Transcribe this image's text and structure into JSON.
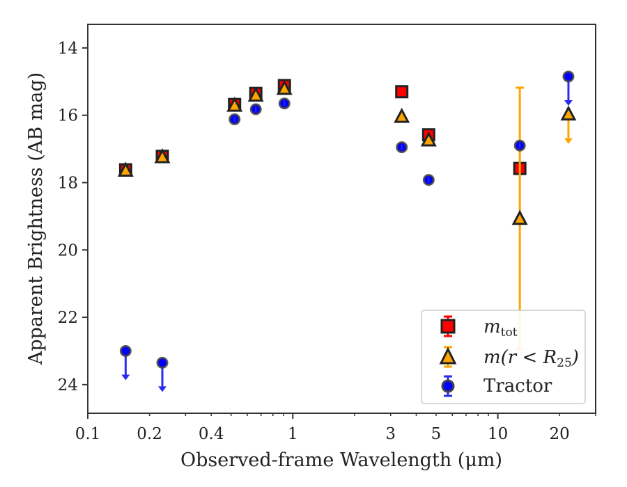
{
  "chart_data": {
    "type": "scatter",
    "xlabel": "Observed-frame Wavelength (μm)",
    "ylabel": "Apparent Brightness (AB mag)",
    "xscale": "log",
    "yinverted": true,
    "xlim": [
      0.1,
      30
    ],
    "ylim": [
      24.85,
      13.3
    ],
    "xticks": [
      {
        "value": 0.1,
        "label": "0.1"
      },
      {
        "value": 0.2,
        "label": "0.2"
      },
      {
        "value": 0.4,
        "label": "0.4"
      },
      {
        "value": 1,
        "label": "1"
      },
      {
        "value": 3,
        "label": "3"
      },
      {
        "value": 5,
        "label": "5"
      },
      {
        "value": 10,
        "label": "10"
      },
      {
        "value": 20,
        "label": "20"
      }
    ],
    "yticks": [
      {
        "value": 14,
        "label": "14"
      },
      {
        "value": 16,
        "label": "16"
      },
      {
        "value": 18,
        "label": "18"
      },
      {
        "value": 20,
        "label": "20"
      },
      {
        "value": 22,
        "label": "22"
      },
      {
        "value": 24,
        "label": "24"
      }
    ],
    "grid": false,
    "legend_position": "lower-right",
    "series": [
      {
        "name": "m_tot",
        "marker": "square",
        "color": "#ff0000",
        "errcolor": "#ff0000",
        "points": [
          {
            "x": 0.153,
            "y": 17.62
          },
          {
            "x": 0.231,
            "y": 17.22
          },
          {
            "x": 0.52,
            "y": 15.68
          },
          {
            "x": 0.66,
            "y": 15.35
          },
          {
            "x": 0.91,
            "y": 15.12
          },
          {
            "x": 3.4,
            "y": 15.3
          },
          {
            "x": 4.6,
            "y": 16.58
          },
          {
            "x": 12.8,
            "y": 17.58,
            "err": 0.06
          }
        ]
      },
      {
        "name": "m(r < R25)",
        "marker": "triangle",
        "color": "#ffa500",
        "errcolor": "#ffa500",
        "points": [
          {
            "x": 0.153,
            "y": 17.65
          },
          {
            "x": 0.231,
            "y": 17.25
          },
          {
            "x": 0.52,
            "y": 15.72
          },
          {
            "x": 0.66,
            "y": 15.42
          },
          {
            "x": 0.91,
            "y": 15.22
          },
          {
            "x": 3.4,
            "y": 16.05
          },
          {
            "x": 4.6,
            "y": 16.75
          },
          {
            "x": 12.8,
            "y": 19.08,
            "err_low": 15.18,
            "err_high": 22.95
          },
          {
            "x": 22.1,
            "y": 15.98,
            "upper_limit": true
          }
        ]
      },
      {
        "name": "Tractor",
        "marker": "circle",
        "color": "#0000ff",
        "errcolor": "#2b2bf0",
        "points": [
          {
            "x": 0.153,
            "y": 23.0,
            "upper_limit": true
          },
          {
            "x": 0.231,
            "y": 23.35,
            "upper_limit": true
          },
          {
            "x": 0.52,
            "y": 16.12
          },
          {
            "x": 0.66,
            "y": 15.82
          },
          {
            "x": 0.91,
            "y": 15.65
          },
          {
            "x": 3.4,
            "y": 16.95
          },
          {
            "x": 4.6,
            "y": 17.92
          },
          {
            "x": 12.8,
            "y": 16.9
          },
          {
            "x": 22.1,
            "y": 14.85,
            "upper_limit": true
          }
        ]
      }
    ]
  },
  "legend": {
    "mtot_base": "m",
    "mtot_sub": "tot",
    "mr_text": "m(r < R",
    "mr_sub": "25",
    "mr_close": ")",
    "tractor": "Tractor"
  }
}
